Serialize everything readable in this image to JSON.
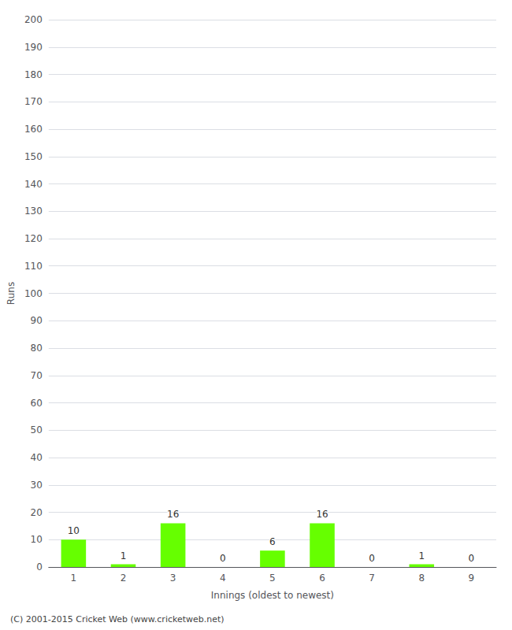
{
  "chart_data": {
    "type": "bar",
    "xlabel": "Innings (oldest to newest)",
    "ylabel": "Runs",
    "categories": [
      "1",
      "2",
      "3",
      "4",
      "5",
      "6",
      "7",
      "8",
      "9"
    ],
    "values": [
      10,
      1,
      16,
      0,
      6,
      16,
      0,
      1,
      0
    ],
    "color": "#66ff00",
    "ylim": [
      0,
      200
    ],
    "yticks": [
      0,
      10,
      20,
      30,
      40,
      50,
      60,
      70,
      80,
      90,
      100,
      110,
      120,
      130,
      140,
      150,
      160,
      170,
      180,
      190,
      200
    ],
    "grid": true,
    "data_labels": true,
    "annotations": [
      "(C) 2001-2015 Cricket Web (www.cricketweb.net)"
    ]
  }
}
